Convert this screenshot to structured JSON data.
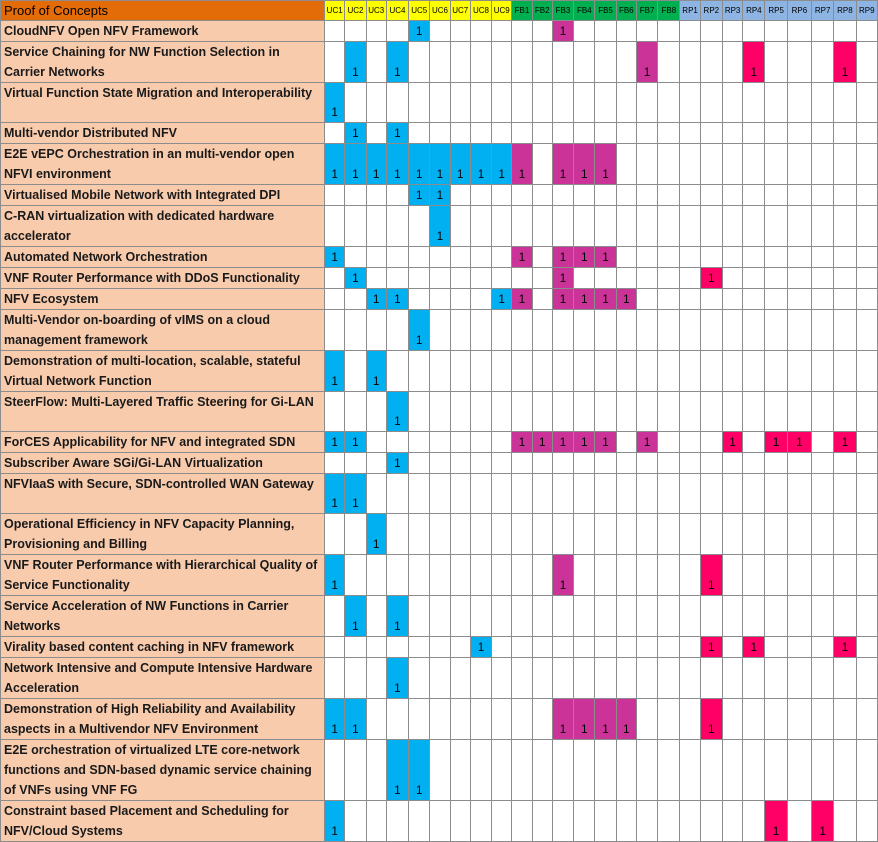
{
  "colors": {
    "header_title_bg": "#e36c09",
    "row_label_bg": "#f8cbad",
    "use_case_header_bg": "#ffff00",
    "feature_header_bg": "#00b050",
    "research_header_bg": "#8db4e2",
    "use_case_fill": "#00b0f0",
    "feature_fill": "#cc3399",
    "research_fill": "#ff0066"
  },
  "header": {
    "title": "Proof of Concepts",
    "columns": [
      {
        "label": "UC1",
        "group": "uc"
      },
      {
        "label": "UC2",
        "group": "uc"
      },
      {
        "label": "UC3",
        "group": "uc"
      },
      {
        "label": "UC4",
        "group": "uc"
      },
      {
        "label": "UC5",
        "group": "uc"
      },
      {
        "label": "UC6",
        "group": "uc"
      },
      {
        "label": "UC7",
        "group": "uc"
      },
      {
        "label": "UC8",
        "group": "uc"
      },
      {
        "label": "UC9",
        "group": "uc"
      },
      {
        "label": "FB1",
        "group": "fb"
      },
      {
        "label": "FB2",
        "group": "fb"
      },
      {
        "label": "FB3",
        "group": "fb"
      },
      {
        "label": "FB4",
        "group": "fb"
      },
      {
        "label": "FB5",
        "group": "fb"
      },
      {
        "label": "FB6",
        "group": "fb"
      },
      {
        "label": "FB7",
        "group": "fb"
      },
      {
        "label": "FB8",
        "group": "fb"
      },
      {
        "label": "RP1",
        "group": "rp"
      },
      {
        "label": "RP2",
        "group": "rp"
      },
      {
        "label": "RP3",
        "group": "rp"
      },
      {
        "label": "RP4",
        "group": "rp"
      },
      {
        "label": "RP5",
        "group": "rp"
      },
      {
        "label": "RP6",
        "group": "rp"
      },
      {
        "label": "RP7",
        "group": "rp"
      },
      {
        "label": "RP8",
        "group": "rp"
      },
      {
        "label": "RP9",
        "group": "rp"
      }
    ]
  },
  "rows": [
    {
      "name": "CloudNFV Open NFV Framework",
      "marks": [
        "UC5",
        "FB3"
      ]
    },
    {
      "name": "Service Chaining for NW Function Selection in Carrier Networks",
      "marks": [
        "UC2",
        "UC4",
        "FB7",
        "RP4",
        "RP8"
      ]
    },
    {
      "name": "Virtual Function State Migration and Interoperability",
      "marks": [
        "UC1"
      ]
    },
    {
      "name": "Multi-vendor Distributed NFV",
      "marks": [
        "UC2",
        "UC4"
      ]
    },
    {
      "name": "E2E vEPC Orchestration in an multi-vendor open NFVI environment",
      "marks": [
        "UC1",
        "UC2",
        "UC3",
        "UC4",
        "UC5",
        "UC6",
        "UC7",
        "UC8",
        "UC9",
        "FB1",
        "FB3",
        "FB4",
        "FB5"
      ]
    },
    {
      "name": "Virtualised Mobile Network with Integrated DPI",
      "marks": [
        "UC5",
        "UC6"
      ]
    },
    {
      "name": "C-RAN virtualization with dedicated hardware accelerator",
      "marks": [
        "UC6"
      ]
    },
    {
      "name": "Automated Network Orchestration",
      "marks": [
        "UC1",
        "FB1",
        "FB3",
        "FB4",
        "FB5"
      ]
    },
    {
      "name": "VNF Router Performance with DDoS Functionality",
      "marks": [
        "UC2",
        "FB3",
        "RP2"
      ]
    },
    {
      "name": "NFV Ecosystem",
      "marks": [
        "UC3",
        "UC4",
        "UC9",
        "FB1",
        "FB3",
        "FB4",
        "FB5",
        "FB6"
      ]
    },
    {
      "name": "Multi-Vendor on-boarding of vIMS on a cloud management framework",
      "marks": [
        "UC5"
      ]
    },
    {
      "name": "Demonstration of multi-location, scalable, stateful Virtual Network Function",
      "marks": [
        "UC1",
        "UC3"
      ]
    },
    {
      "name": "SteerFlow: Multi-Layered Traffic Steering for Gi-LAN",
      "marks": [
        "UC4"
      ]
    },
    {
      "name": "ForCES Applicability for NFV and integrated SDN",
      "marks": [
        "UC1",
        "UC2",
        "FB1",
        "FB2",
        "FB3",
        "FB4",
        "FB5",
        "FB7",
        "RP3",
        "RP5",
        "RP6",
        "RP8"
      ]
    },
    {
      "name": "Subscriber Aware SGi/Gi-LAN Virtualization",
      "marks": [
        "UC4"
      ]
    },
    {
      "name": "NFVIaaS with Secure, SDN-controlled WAN Gateway",
      "marks": [
        "UC1",
        "UC2"
      ]
    },
    {
      "name": "Operational Efficiency in NFV Capacity Planning, Provisioning and Billing",
      "marks": [
        "UC3"
      ]
    },
    {
      "name": "VNF Router Performance with Hierarchical Quality of Service Functionality",
      "marks": [
        "UC1",
        "FB3",
        "RP2"
      ]
    },
    {
      "name": "Service Acceleration of NW Functions in Carrier Networks",
      "marks": [
        "UC2",
        "UC4"
      ]
    },
    {
      "name": "Virality based content caching in NFV framework",
      "marks": [
        "UC8",
        "RP2",
        "RP4",
        "RP8"
      ]
    },
    {
      "name": "Network Intensive and Compute Intensive Hardware Acceleration",
      "marks": [
        "UC4"
      ]
    },
    {
      "name": "Demonstration of High Reliability and Availability aspects in a Multivendor NFV Environment",
      "marks": [
        "UC1",
        "UC2",
        "FB3",
        "FB4",
        "FB5",
        "FB6",
        "RP2"
      ]
    },
    {
      "name": "E2E orchestration of virtualized LTE core-network functions and SDN-based dynamic service chaining of VNFs using VNF FG",
      "marks": [
        "UC4",
        "UC5"
      ]
    },
    {
      "name": "Constraint based Placement and Scheduling for NFV/Cloud Systems",
      "marks": [
        "UC1",
        "RP5",
        "RP7"
      ]
    }
  ],
  "mark_value": "1"
}
